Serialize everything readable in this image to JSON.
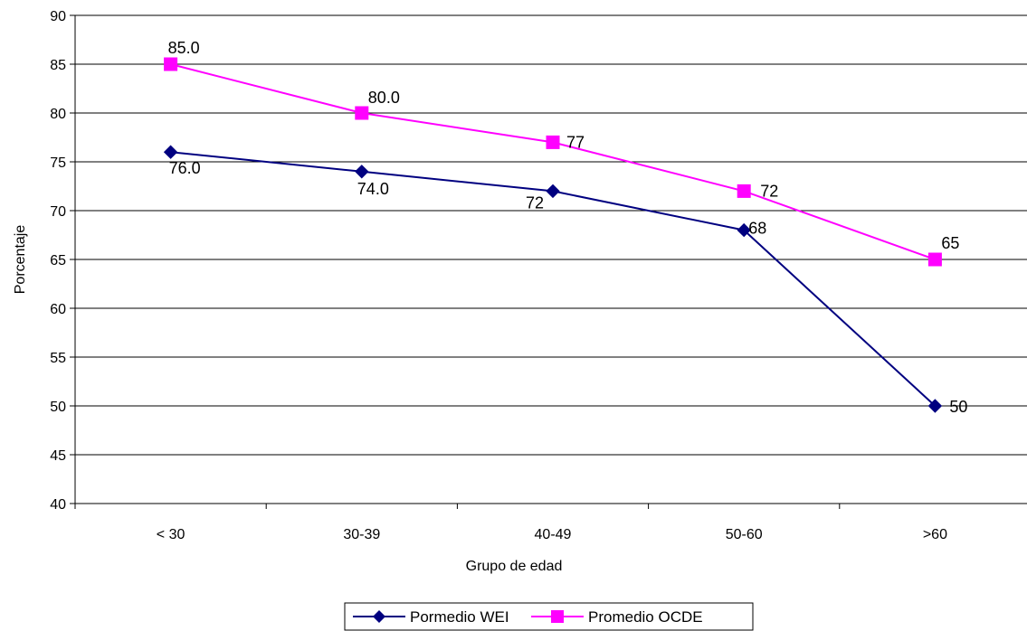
{
  "chart_data": {
    "type": "line",
    "title": "",
    "xlabel": "Grupo de edad",
    "ylabel": "Porcentaje",
    "ylim": [
      40,
      90
    ],
    "ytick_step": 5,
    "grid": "horizontal",
    "legend": "bottom",
    "categories": [
      "< 30",
      "30-39",
      "40-49",
      "50-60",
      ">60"
    ],
    "series": [
      {
        "name": "Pormedio WEI",
        "color": "#000080",
        "marker": "diamond",
        "values": [
          76,
          74,
          72,
          68,
          50
        ],
        "labels": [
          "76.0",
          "74.0",
          "72",
          "68",
          "50"
        ]
      },
      {
        "name": "Promedio OCDE",
        "color": "#FF00FF",
        "marker": "square",
        "values": [
          85,
          80,
          77,
          72,
          65
        ],
        "labels": [
          "85.0",
          "80.0",
          "77",
          "72",
          "65"
        ]
      }
    ]
  }
}
